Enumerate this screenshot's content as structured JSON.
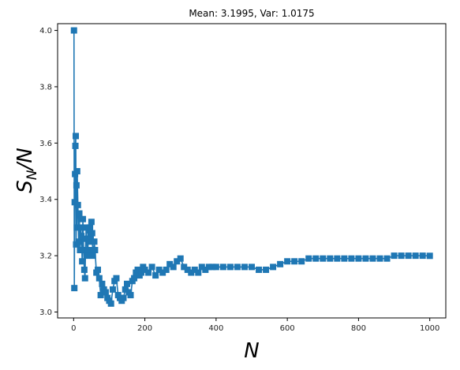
{
  "chart_data": {
    "type": "line",
    "title": "Mean: 3.1995, Var: 1.0175",
    "xlabel_main": "N",
    "ylabel_main": "S",
    "ylabel_sub": "N",
    "ylabel_tail": "/N",
    "xlim": [
      -45,
      1045
    ],
    "ylim": [
      2.979,
      4.024
    ],
    "x_ticks": [
      0,
      200,
      400,
      600,
      800,
      1000
    ],
    "y_ticks": [
      3.0,
      3.2,
      3.4,
      3.6,
      3.8,
      4.0
    ],
    "x_tick_labels": [
      "0",
      "200",
      "400",
      "600",
      "800",
      "1000"
    ],
    "y_tick_labels": [
      "3.0",
      "3.2",
      "3.4",
      "3.6",
      "3.8",
      "4.0"
    ],
    "grid": false,
    "marker": "square",
    "series_color": "#1f77b4",
    "series": [
      {
        "x": [
          1,
          2,
          3,
          4,
          5,
          6,
          7,
          8,
          9,
          10,
          12,
          14,
          16,
          18,
          20,
          22,
          24,
          26,
          28,
          30,
          32,
          34,
          36,
          38,
          40,
          42,
          44,
          46,
          48,
          50,
          52,
          54,
          56,
          58,
          60,
          64,
          68,
          72,
          76,
          80,
          85,
          90,
          95,
          100,
          105,
          110,
          115,
          120,
          125,
          130,
          135,
          140,
          145,
          150,
          155,
          160,
          165,
          170,
          175,
          180,
          185,
          190,
          195,
          200,
          210,
          220,
          230,
          240,
          250,
          260,
          270,
          280,
          290,
          300,
          310,
          320,
          330,
          340,
          350,
          360,
          370,
          380,
          390,
          400,
          420,
          440,
          460,
          480,
          500,
          520,
          540,
          560,
          580,
          600,
          620,
          640,
          660,
          680,
          700,
          720,
          740,
          760,
          780,
          800,
          820,
          840,
          860,
          880,
          900,
          920,
          940,
          960,
          980,
          1000
        ],
        "y": [
          4.0,
          3.085,
          3.39,
          3.49,
          3.59,
          3.625,
          3.24,
          3.45,
          3.3,
          3.5,
          3.38,
          3.25,
          3.35,
          3.22,
          3.3,
          3.27,
          3.18,
          3.33,
          3.22,
          3.15,
          3.12,
          3.26,
          3.3,
          3.2,
          3.22,
          3.29,
          3.25,
          3.3,
          3.27,
          3.32,
          3.28,
          3.2,
          3.22,
          3.25,
          3.22,
          3.14,
          3.15,
          3.12,
          3.06,
          3.1,
          3.08,
          3.07,
          3.05,
          3.04,
          3.03,
          3.08,
          3.11,
          3.12,
          3.06,
          3.05,
          3.04,
          3.05,
          3.08,
          3.1,
          3.07,
          3.06,
          3.11,
          3.12,
          3.14,
          3.15,
          3.13,
          3.14,
          3.16,
          3.15,
          3.14,
          3.16,
          3.13,
          3.15,
          3.14,
          3.15,
          3.17,
          3.16,
          3.18,
          3.19,
          3.16,
          3.15,
          3.14,
          3.15,
          3.14,
          3.16,
          3.15,
          3.16,
          3.16,
          3.16,
          3.16,
          3.16,
          3.16,
          3.16,
          3.16,
          3.15,
          3.15,
          3.16,
          3.17,
          3.18,
          3.18,
          3.18,
          3.19,
          3.19,
          3.19,
          3.19,
          3.19,
          3.19,
          3.19,
          3.19,
          3.19,
          3.19,
          3.19,
          3.19,
          3.2,
          3.2,
          3.2,
          3.2,
          3.2,
          3.1995
        ]
      }
    ]
  }
}
